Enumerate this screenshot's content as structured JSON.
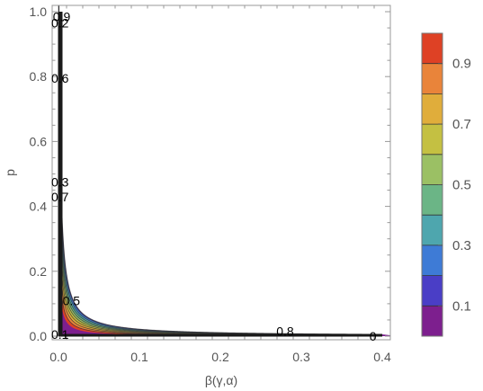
{
  "chart_data": {
    "type": "contour",
    "xlabel": "β(γ,α)",
    "ylabel": "p",
    "xlim": [
      0,
      0.4
    ],
    "ylim": [
      0,
      1.0
    ],
    "x_ticks": [
      "0.0",
      "0.1",
      "0.2",
      "0.3",
      "0.4"
    ],
    "x_tick_values": [
      0,
      0.1,
      0.2,
      0.3,
      0.4
    ],
    "y_ticks": [
      "0.0",
      "0.2",
      "0.4",
      "0.6",
      "0.8",
      "1.0"
    ],
    "y_tick_values": [
      0,
      0.2,
      0.4,
      0.6,
      0.8,
      1.0
    ],
    "levels": [
      0.1,
      0.2,
      0.3,
      0.4,
      0.5,
      0.6,
      0.7,
      0.8,
      0.9
    ],
    "legend_ticks": [
      "0.1",
      "0.3",
      "0.5",
      "0.7",
      "0.9"
    ],
    "legend_tick_values": [
      0.1,
      0.3,
      0.5,
      0.7,
      0.9
    ],
    "legend_range": [
      0,
      1.0
    ],
    "legend_placement": "right",
    "band_colors": [
      "#7d1f8e",
      "#4a3ec6",
      "#3e7bd6",
      "#4ea6ae",
      "#6bb586",
      "#9bc064",
      "#c4c042",
      "#e0ad3b",
      "#e9843a",
      "#de4125"
    ],
    "curve_coefficients": [
      0.0022,
      0.0021,
      0.0019,
      0.0017,
      0.0015,
      0.0013,
      0.0011,
      0.0009,
      0.0007
    ],
    "contour_labels": [
      {
        "text": "0.9",
        "x": 0.002,
        "y": 0.985
      },
      {
        "text": "0.2",
        "x": 0.0,
        "y": 0.965
      },
      {
        "text": "0.6",
        "x": 0.0,
        "y": 0.795
      },
      {
        "text": "0.3",
        "x": 0.0,
        "y": 0.475
      },
      {
        "text": "0.7",
        "x": 0.0,
        "y": 0.43
      },
      {
        "text": "0.5",
        "x": 0.014,
        "y": 0.11
      },
      {
        "text": "0.1",
        "x": 0.0,
        "y": 0.005
      },
      {
        "text": "0.8",
        "x": 0.278,
        "y": 0.015
      },
      {
        "text": "0",
        "x": 0.393,
        "y": 0.0
      }
    ]
  }
}
